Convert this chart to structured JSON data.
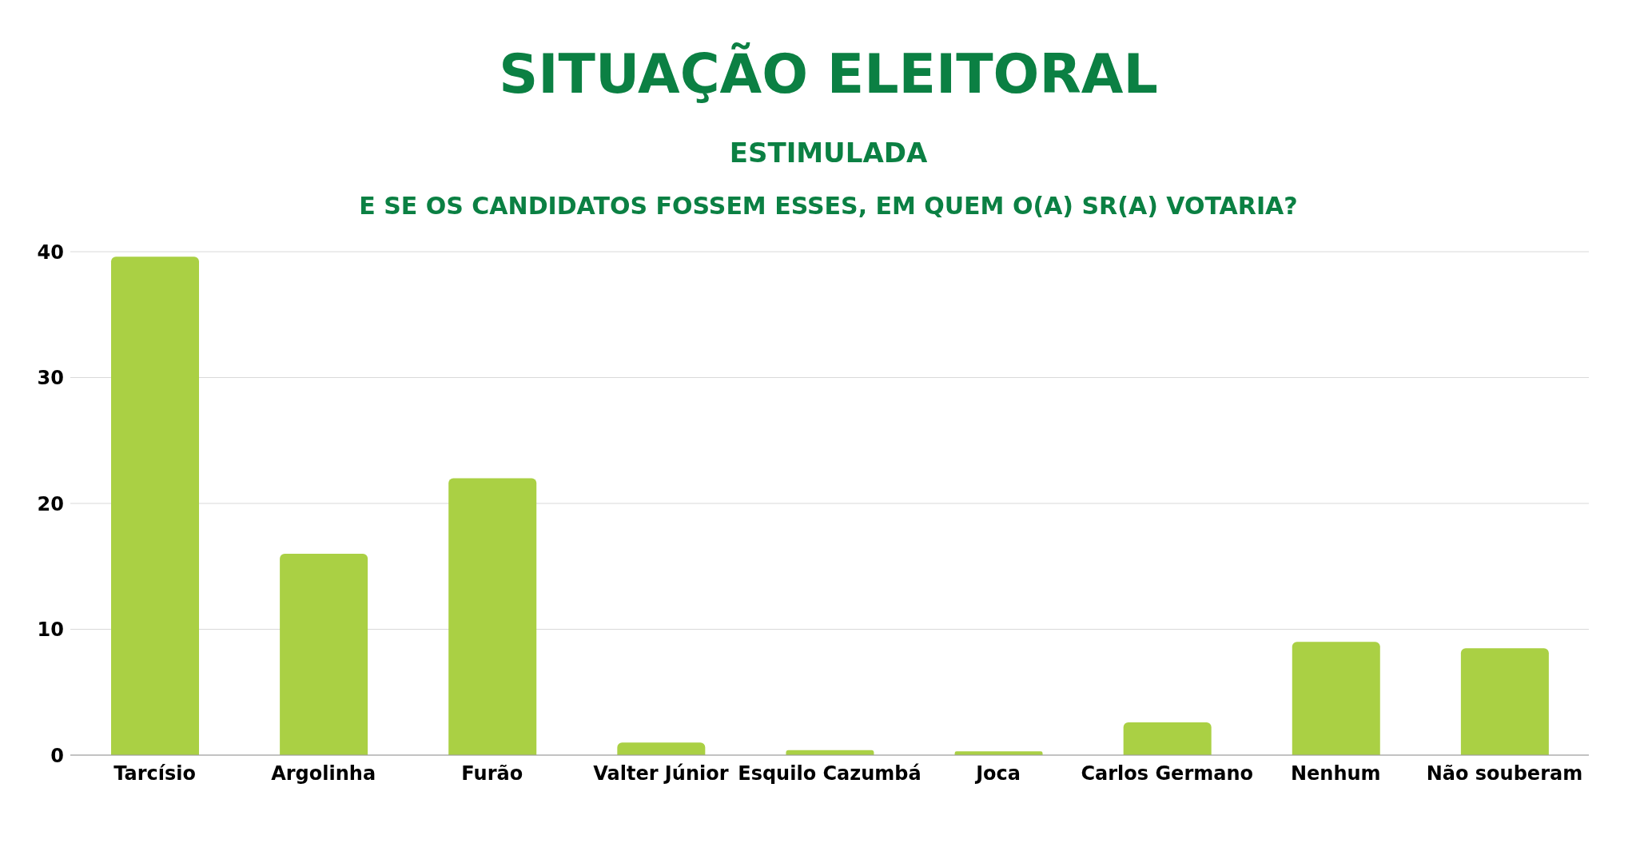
{
  "chart_data": {
    "type": "bar",
    "title": "SITUAÇÃO ELEITORAL",
    "subtitle": "ESTIMULADA",
    "annotations": [
      "E SE OS CANDIDATOS FOSSEM ESSES, EM QUEM O(A) SR(A) VOTARIA?"
    ],
    "categories": [
      "Tarcísio",
      "Argolinha",
      "Furão",
      "Valter Júnior",
      "Esquilo Cazumbá",
      "Joca",
      "Carlos Germano",
      "Nenhum",
      "Não souberam"
    ],
    "values": [
      39.6,
      16,
      22,
      1,
      0.4,
      0.3,
      2.6,
      9,
      8.5
    ],
    "color": "#aad044",
    "ylim": [
      0,
      40
    ],
    "yticks": [
      0,
      10,
      20,
      30,
      40
    ],
    "grid": "y",
    "legend": false
  }
}
